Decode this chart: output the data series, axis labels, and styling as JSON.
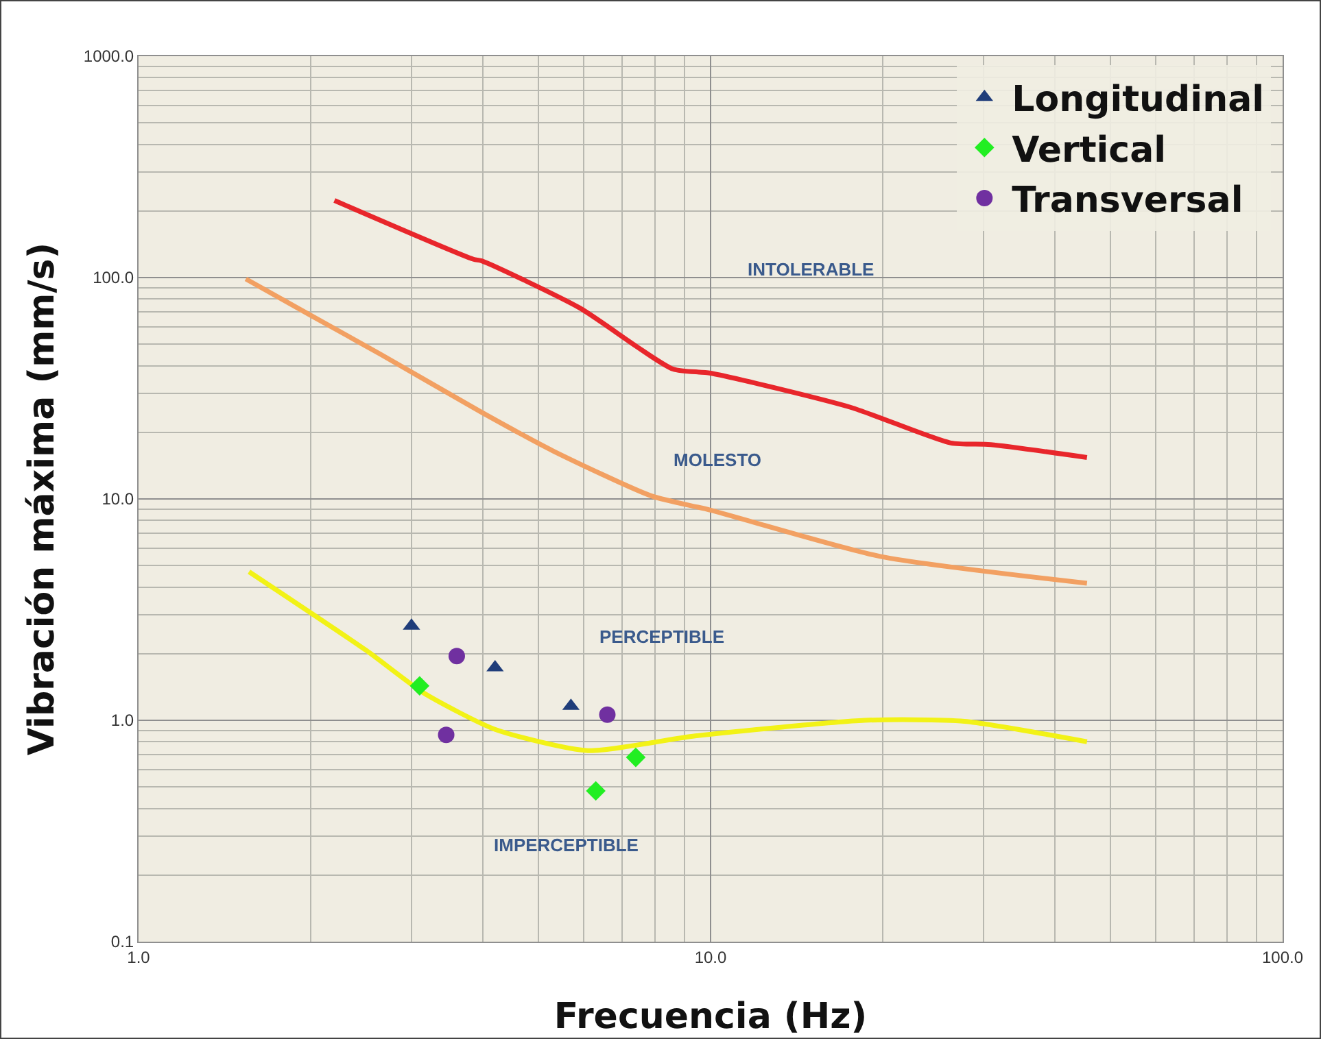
{
  "chart_data": {
    "type": "scatter",
    "xlabel": "Frecuencia (Hz)",
    "ylabel": "Vibración máxima (mm/s)",
    "log": "xy",
    "grid": true,
    "legend": "top right",
    "xlim": [
      1,
      100
    ],
    "xticks": [
      {
        "value": 1,
        "label": "1.0"
      },
      {
        "value": 10,
        "label": "10.0"
      },
      {
        "value": 100,
        "label": "100.0"
      }
    ],
    "ylim": [
      0.1,
      1000
    ],
    "yticks": [
      {
        "value": 0.1,
        "label": "0.1"
      },
      {
        "value": 1,
        "label": "1.0"
      },
      {
        "value": 10,
        "label": "10.0"
      },
      {
        "value": 100,
        "label": "100.0"
      },
      {
        "value": 1000,
        "label": "1000.0"
      }
    ],
    "series": [
      {
        "type": "line",
        "color": "#e8262b",
        "marker": "none",
        "x": [
          2.2,
          3.85,
          3.98,
          5.9,
          8.6,
          10,
          17.6,
          26.3,
          30.9,
          45.5
        ],
        "values": [
          223,
          121,
          119,
          73,
          38.6,
          37,
          25.9,
          17.9,
          17.6,
          15.4
        ]
      },
      {
        "type": "line",
        "color": "#f2a062",
        "marker": "none",
        "x": [
          1.54,
          1.99,
          2.65,
          3.96,
          5.3,
          7.9,
          10,
          19.8,
          45.5
        ],
        "values": [
          98.6,
          68,
          45,
          24.8,
          16.5,
          10.3,
          8.9,
          5.5,
          4.16
        ]
      },
      {
        "type": "line",
        "color": "#f2f216",
        "marker": "none",
        "x": [
          1.56,
          2.5,
          3.15,
          4.2,
          6.1,
          9.4,
          18.6,
          27.8,
          45.5
        ],
        "values": [
          4.69,
          2.07,
          1.33,
          0.91,
          0.73,
          0.85,
          1.0,
          0.99,
          0.8
        ]
      },
      {
        "name": "Longitudinal",
        "color": "#1f3d7a",
        "marker": "triangle",
        "x": [
          3.0,
          4.2,
          5.7
        ],
        "values": [
          2.67,
          1.73,
          1.16
        ]
      },
      {
        "name": "Vertical",
        "color": "#22ee22",
        "marker": "diamond",
        "x": [
          3.1,
          6.3,
          7.4
        ],
        "values": [
          1.43,
          0.48,
          0.68
        ]
      },
      {
        "name": "Transversal",
        "color": "#7030a0",
        "marker": "circle",
        "x": [
          3.6,
          3.45,
          6.6
        ],
        "values": [
          1.95,
          0.86,
          1.06
        ]
      }
    ],
    "annotations": [
      "INTOLERABLE",
      "MOLESTO",
      "PERCEPTIBLE",
      "IMPERCEPTIBLE"
    ]
  }
}
